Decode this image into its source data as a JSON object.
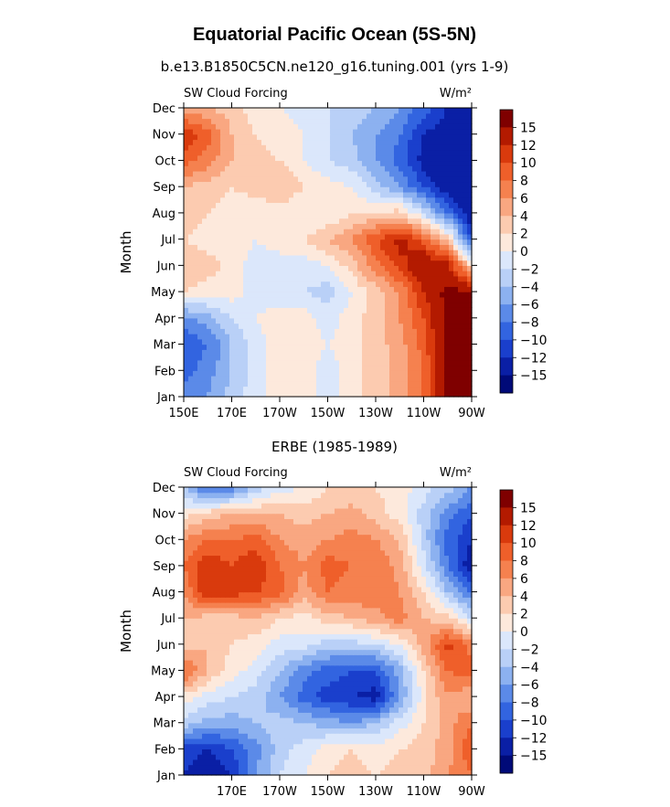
{
  "page": {
    "title": "Equatorial Pacific Ocean (5S-5N)"
  },
  "chart_data": [
    {
      "type": "heatmap",
      "subtitle": "b.e13.B1850C5CN.ne120_g16.tuning.001 (yrs 1-9)",
      "left_label": "SW Cloud Forcing",
      "right_label": "W/m²",
      "ylabel": "Month",
      "xlabel": "",
      "xlim": [
        150,
        270
      ],
      "ylim": [
        "Jan",
        "Dec"
      ],
      "x_ticks": [
        {
          "value": 150,
          "label": "150E"
        },
        {
          "value": 170,
          "label": "170E"
        },
        {
          "value": 190,
          "label": "170W"
        },
        {
          "value": 210,
          "label": "150W"
        },
        {
          "value": 230,
          "label": "130W"
        },
        {
          "value": 250,
          "label": "110W"
        },
        {
          "value": 270,
          "label": "90W"
        }
      ],
      "y_ticks": [
        "Jan",
        "Feb",
        "Mar",
        "Apr",
        "May",
        "Jun",
        "Jul",
        "Aug",
        "Sep",
        "Oct",
        "Nov",
        "Dec"
      ],
      "lon": [
        150,
        160,
        170,
        180,
        190,
        200,
        210,
        220,
        230,
        240,
        250,
        260,
        270
      ],
      "month": [
        "Jan",
        "Feb",
        "Mar",
        "Apr",
        "May",
        "Jun",
        "Jul",
        "Aug",
        "Sep",
        "Oct",
        "Nov",
        "Dec"
      ],
      "z": [
        [
          -7,
          -6,
          -3,
          -1,
          1,
          1,
          -1,
          1,
          3,
          5,
          8,
          16,
          16
        ],
        [
          -9,
          -7,
          -4,
          -1,
          1,
          1,
          -1,
          1,
          3,
          5,
          8,
          16,
          16
        ],
        [
          -10,
          -8,
          -4,
          -1,
          1,
          1,
          0,
          1,
          3,
          5,
          9,
          16,
          16
        ],
        [
          -7,
          -5,
          -2,
          0,
          1,
          1,
          -1,
          1,
          3,
          6,
          10,
          16,
          16
        ],
        [
          2,
          1,
          1,
          -1,
          -1,
          -2,
          -3,
          0,
          3,
          6,
          12,
          16,
          15
        ],
        [
          4,
          3,
          1,
          -1,
          -1,
          -1,
          0,
          3,
          7,
          11,
          15,
          13,
          2
        ],
        [
          2,
          1,
          1,
          0,
          1,
          2,
          4,
          6,
          10,
          13,
          9,
          3,
          -10
        ],
        [
          3,
          2,
          1,
          0,
          1,
          0,
          0,
          2,
          2,
          3,
          -2,
          -8,
          -14
        ],
        [
          4,
          3,
          2,
          3,
          4,
          2,
          1,
          0,
          -3,
          -6,
          -10,
          -14,
          -15
        ],
        [
          9,
          7,
          4,
          3,
          2,
          0,
          -2,
          -3,
          -6,
          -9,
          -13,
          -15,
          -15
        ],
        [
          12,
          9,
          4,
          2,
          1,
          0,
          -2,
          -4,
          -6,
          -8,
          -12,
          -14,
          -14
        ],
        [
          5,
          4,
          3,
          1,
          0,
          -1,
          -2,
          -2,
          -4,
          -6,
          -9,
          -12,
          -12
        ]
      ]
    },
    {
      "type": "heatmap",
      "subtitle": "ERBE (1985-1989)",
      "left_label": "SW Cloud Forcing",
      "right_label": "W/m²",
      "ylabel": "Month",
      "xlabel": "",
      "xlim": [
        150,
        270
      ],
      "ylim": [
        "Jan",
        "Dec"
      ],
      "x_ticks": [
        {
          "value": 170,
          "label": "170E"
        },
        {
          "value": 190,
          "label": "170W"
        },
        {
          "value": 210,
          "label": "150W"
        },
        {
          "value": 230,
          "label": "130W"
        },
        {
          "value": 250,
          "label": "110W"
        },
        {
          "value": 270,
          "label": "90W"
        }
      ],
      "y_ticks": [
        "Jan",
        "Feb",
        "Mar",
        "Apr",
        "May",
        "Jun",
        "Jul",
        "Aug",
        "Sep",
        "Oct",
        "Nov",
        "Dec"
      ],
      "lon": [
        150,
        160,
        170,
        180,
        190,
        200,
        210,
        220,
        230,
        240,
        250,
        260,
        270
      ],
      "month": [
        "Jan",
        "Feb",
        "Mar",
        "Apr",
        "May",
        "Jun",
        "Jul",
        "Aug",
        "Sep",
        "Oct",
        "Nov",
        "Dec"
      ],
      "z": [
        [
          -12,
          -14,
          -12,
          -6,
          -2,
          0,
          2,
          3,
          2,
          3,
          3,
          6,
          8
        ],
        [
          -11,
          -12,
          -10,
          -7,
          -3,
          -1,
          1,
          2,
          1,
          2,
          3,
          5,
          10
        ],
        [
          -3,
          -5,
          -5,
          -4,
          -3,
          -4,
          -5,
          -6,
          -4,
          -1,
          2,
          5,
          8
        ],
        [
          1,
          -1,
          -2,
          -3,
          -6,
          -9,
          -11,
          -12,
          -13,
          -6,
          1,
          6,
          4
        ],
        [
          9,
          4,
          1,
          -1,
          -4,
          -7,
          -9,
          -10,
          -10,
          -5,
          2,
          8,
          9
        ],
        [
          3,
          4,
          2,
          1,
          -1,
          -1,
          -3,
          -3,
          -2,
          0,
          5,
          11,
          7
        ],
        [
          4,
          3,
          3,
          4,
          2,
          1,
          3,
          4,
          5,
          7,
          4,
          3,
          -2
        ],
        [
          6,
          12,
          11,
          10,
          9,
          5,
          8,
          7,
          8,
          6,
          2,
          -4,
          -8
        ],
        [
          8,
          12,
          10,
          12,
          8,
          6,
          9,
          8,
          8,
          5,
          -1,
          -8,
          -14
        ],
        [
          6,
          8,
          8,
          9,
          6,
          5,
          6,
          7,
          6,
          4,
          -3,
          -9,
          -12
        ],
        [
          1,
          3,
          4,
          4,
          4,
          3,
          4,
          5,
          3,
          1,
          -3,
          -7,
          -10
        ],
        [
          -4,
          -9,
          -8,
          -3,
          -1,
          0,
          2,
          2,
          2,
          1,
          -1,
          -3,
          -6
        ]
      ]
    }
  ],
  "colorbar": {
    "levels": [
      "15",
      "12",
      "10",
      "8",
      "6",
      "4",
      "2",
      "0",
      "−2",
      "−4",
      "−6",
      "−8",
      "−10",
      "−12",
      "−15"
    ],
    "colors": [
      "#7f0000",
      "#b31a00",
      "#d93a0d",
      "#ef5f2a",
      "#f5814f",
      "#f9a781",
      "#fccbb0",
      "#fde9dc",
      "#dbe7fb",
      "#b9d0f7",
      "#8cb1f0",
      "#5b8ae8",
      "#3264e0",
      "#1a3fcc",
      "#0a1fa5",
      "#000a78"
    ]
  }
}
